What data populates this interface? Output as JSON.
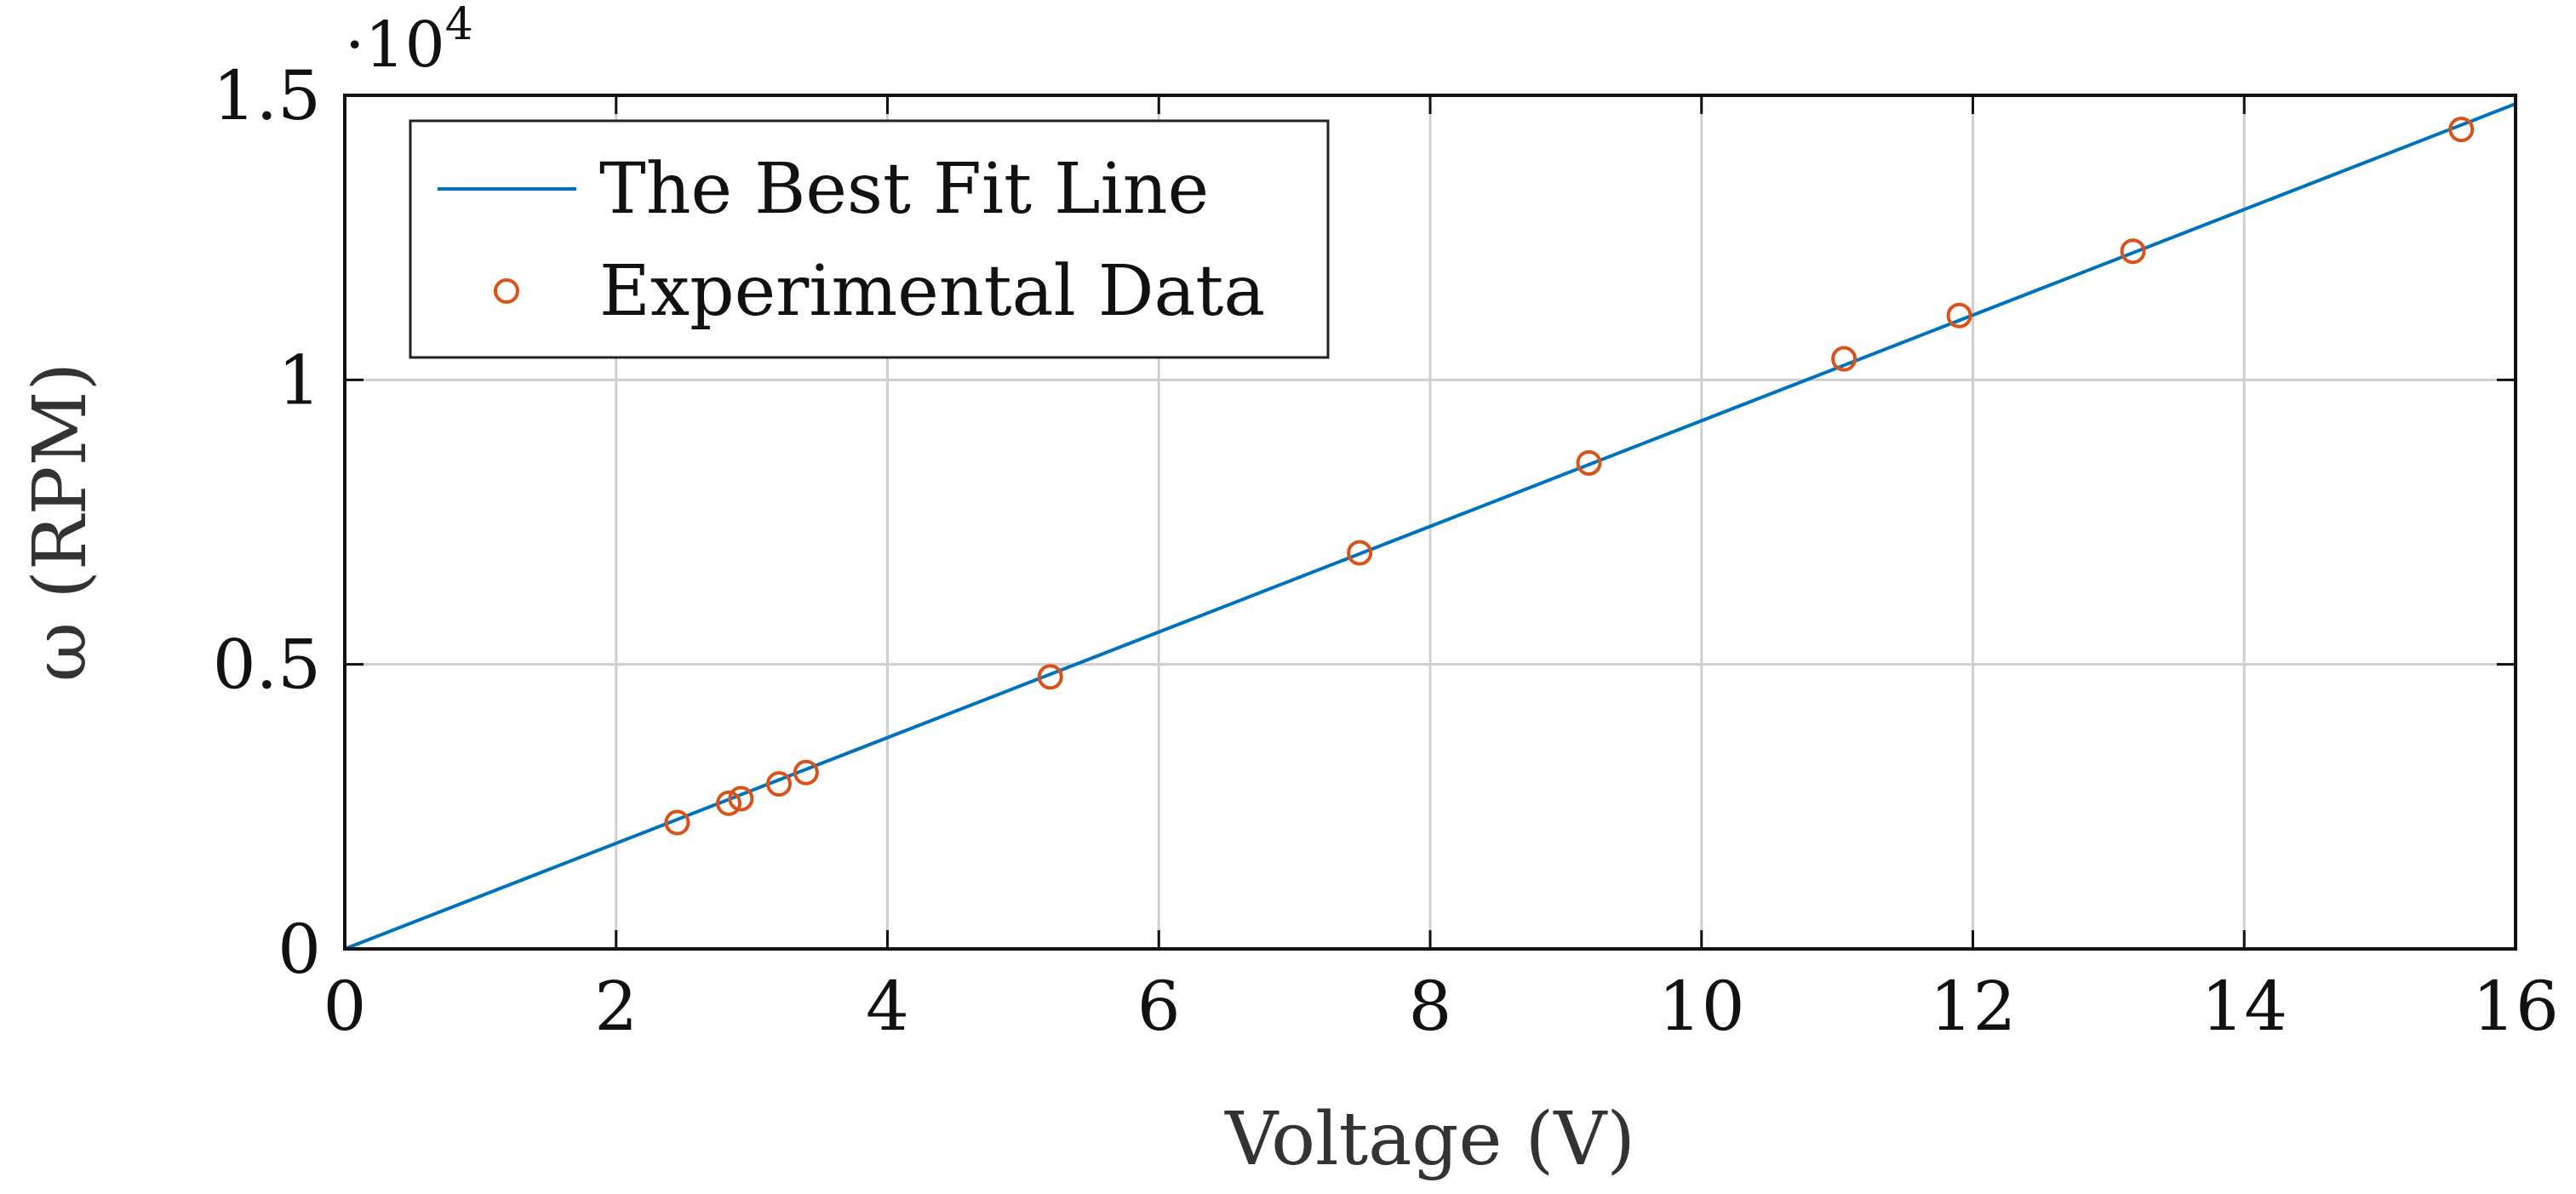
{
  "chart_data": {
    "type": "scatter",
    "title": "",
    "xlabel": "Voltage (V)",
    "ylabel": "ω (RPM)",
    "y_multiplier_base": "·10",
    "y_multiplier_exponent": "4",
    "xlim": [
      0,
      16
    ],
    "ylim": [
      0,
      1.5
    ],
    "x_ticks": [
      0,
      2,
      4,
      6,
      8,
      10,
      12,
      14,
      16
    ],
    "x_tick_labels": [
      "0",
      "2",
      "4",
      "6",
      "8",
      "10",
      "12",
      "14",
      "16"
    ],
    "y_ticks": [
      0,
      0.5,
      1,
      1.5
    ],
    "y_tick_labels": [
      "0",
      "0.5",
      "1",
      "1.5"
    ],
    "grid": true,
    "legend_position": "top-left",
    "series": [
      {
        "name": "The Best Fit Line",
        "kind": "line",
        "color": "#0072BD",
        "x": [
          0,
          16
        ],
        "y": [
          0,
          1.485
        ]
      },
      {
        "name": "Experimental Data",
        "kind": "scatter",
        "marker": "circle-open",
        "color": "#D95319",
        "x": [
          2.45,
          2.83,
          2.92,
          3.2,
          3.4,
          5.2,
          7.48,
          9.17,
          11.05,
          11.9,
          13.18,
          15.6
        ],
        "y": [
          0.222,
          0.256,
          0.264,
          0.29,
          0.31,
          0.478,
          0.696,
          0.854,
          1.037,
          1.113,
          1.226,
          1.44
        ]
      }
    ]
  }
}
